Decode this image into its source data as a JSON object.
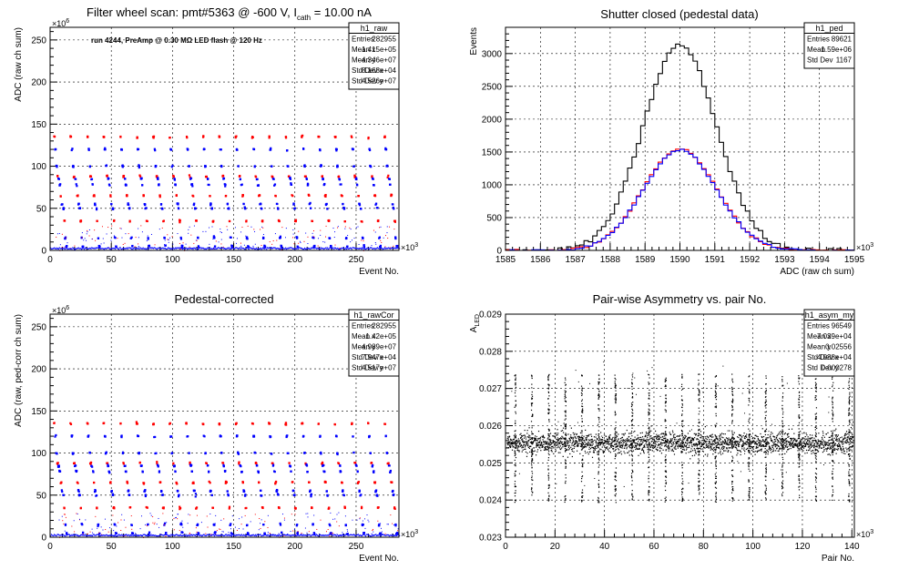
{
  "chart_data": [
    {
      "type": "scatter",
      "title": "Filter wheel scan: pmt#5363 @  -600 V, I",
      "title_sub": "cath",
      "title_tail": " = 10.00 nA",
      "annotation": "run 4244, PreAmp @ 0.30 MΩ LED flash @  120 Hz",
      "xlabel": "Event No.",
      "ylabel": "ADC (raw ch sum)",
      "xlim": [
        0,
        285
      ],
      "ylim": [
        0,
        265
      ],
      "x_exponent": "×10",
      "x_exponent_power": "3",
      "y_exponent": "×10",
      "y_exponent_power": "6",
      "x_ticks": [
        0,
        50,
        100,
        150,
        200,
        250
      ],
      "y_ticks": [
        0,
        50,
        100,
        150,
        200,
        250
      ],
      "grid": true,
      "colors": {
        "red": "#ff0000",
        "blue": "#0000ff"
      },
      "levels": [
        135,
        120,
        100,
        88,
        85,
        78,
        65,
        55,
        50,
        35,
        15,
        5
      ],
      "period": 13.5,
      "stats": {
        "name": "h1_raw",
        "rows": [
          [
            "Entries",
            "282955"
          ],
          [
            "Mean x",
            "1.415e+05"
          ],
          [
            "Mean y",
            "4.346e+07"
          ],
          [
            "Std Dev x",
            "8.168e+04"
          ],
          [
            "Std Dev y",
            "4.526e+07"
          ]
        ]
      }
    },
    {
      "type": "line",
      "title": "Shutter closed (pedestal data)",
      "xlabel": "ADC (raw ch sum)",
      "ylabel": "Events",
      "xlim": [
        1585,
        1595
      ],
      "ylim": [
        0,
        3400
      ],
      "x_exponent": "×10",
      "x_exponent_power": "3",
      "x_ticks": [
        1585,
        1586,
        1587,
        1588,
        1589,
        1590,
        1591,
        1592,
        1593,
        1594,
        1595
      ],
      "y_ticks": [
        0,
        500,
        1000,
        1500,
        2000,
        2500,
        3000
      ],
      "grid": true,
      "series": [
        {
          "color": "#000000",
          "mean": 1590.0,
          "sigma": 1.05,
          "peak": 3130
        },
        {
          "color": "#ff0000",
          "mean": 1590.0,
          "sigma": 1.05,
          "peak": 1550
        },
        {
          "color": "#0000ff",
          "mean": 1590.0,
          "sigma": 1.05,
          "peak": 1535
        }
      ],
      "stats": {
        "name": "h1_ped",
        "rows": [
          [
            "Entries",
            "89621"
          ],
          [
            "Mean",
            "1.59e+06"
          ],
          [
            "Std Dev",
            "1167"
          ]
        ]
      }
    },
    {
      "type": "scatter",
      "title": "Pedestal-corrected",
      "xlabel": "Event No.",
      "ylabel": "ADC (raw, ped-corr ch sum)",
      "xlim": [
        0,
        285
      ],
      "ylim": [
        0,
        265
      ],
      "x_exponent": "×10",
      "x_exponent_power": "3",
      "y_exponent": "×10",
      "y_exponent_power": "6",
      "x_ticks": [
        0,
        50,
        100,
        150,
        200,
        250
      ],
      "y_ticks": [
        0,
        50,
        100,
        150,
        200,
        250
      ],
      "grid": true,
      "levels": [
        135,
        120,
        100,
        88,
        85,
        78,
        65,
        55,
        50,
        35,
        15,
        5
      ],
      "period": 13.5,
      "stats": {
        "name": "h1_rawCor",
        "rows": [
          [
            "Entries",
            "282955"
          ],
          [
            "Mean x",
            "1.42e+05"
          ],
          [
            "Mean y",
            "4.989e+07"
          ],
          [
            "Std Dev x",
            "7.947e+04"
          ],
          [
            "Std Dev y",
            "4.517e+07"
          ]
        ]
      }
    },
    {
      "type": "scatter",
      "title": "Pair-wise Asymmetry vs. pair No.",
      "xlabel": "Pair No.",
      "ylabel": "A",
      "ylabel_sub": "LED",
      "xlim": [
        0,
        141
      ],
      "ylim": [
        0.023,
        0.029
      ],
      "x_exponent": "×10",
      "x_exponent_power": "3",
      "x_ticks": [
        0,
        20,
        40,
        60,
        80,
        100,
        120,
        140
      ],
      "y_ticks": [
        0.023,
        0.024,
        0.025,
        0.026,
        0.027,
        0.028,
        0.029
      ],
      "grid": true,
      "band_center": 0.02555,
      "band_halfwidth": 0.00025,
      "spike_period": 6.75,
      "spike_low": 0.02395,
      "spike_high": 0.0274,
      "stats": {
        "name": "h1_asym_my",
        "rows": [
          [
            "Entries",
            "96549"
          ],
          [
            "Mean x",
            "7.039e+04"
          ],
          [
            "Mean y",
            "0.02556"
          ],
          [
            "Std Dev x",
            "4.038e+04"
          ],
          [
            "Std Dev y",
            "0.000278"
          ]
        ]
      }
    }
  ]
}
